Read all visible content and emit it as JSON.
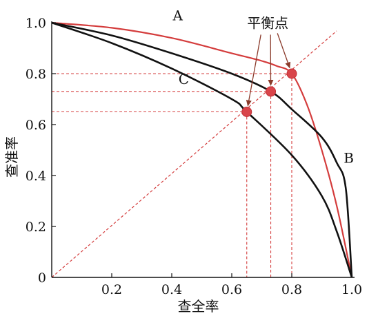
{
  "chart_data": {
    "type": "line",
    "xlabel": "查全率",
    "ylabel": "查准率",
    "xlim": [
      0,
      1
    ],
    "ylim": [
      0,
      1
    ],
    "x_ticks": [
      "0.2",
      "0.4",
      "0.6",
      "0.8",
      "1.0"
    ],
    "y_ticks": [
      "0",
      "0.2",
      "0.4",
      "0.6",
      "0.8",
      "1.0"
    ],
    "origin_label": "0",
    "series": [
      {
        "name": "A",
        "color": "#d43c3c",
        "x": [
          0,
          0.2,
          0.4,
          0.6,
          0.7,
          0.75,
          0.8,
          0.85,
          0.9,
          0.95,
          1.0
        ],
        "y": [
          1.0,
          0.98,
          0.94,
          0.88,
          0.85,
          0.83,
          0.8,
          0.68,
          0.5,
          0.28,
          0.0
        ]
      },
      {
        "name": "B",
        "color": "#111111",
        "x": [
          0,
          0.2,
          0.4,
          0.6,
          0.73,
          0.8,
          0.9,
          0.95,
          0.98,
          1.0
        ],
        "y": [
          1.0,
          0.95,
          0.88,
          0.8,
          0.73,
          0.66,
          0.55,
          0.45,
          0.35,
          0.0
        ]
      },
      {
        "name": "C",
        "color": "#111111",
        "x": [
          0,
          0.2,
          0.4,
          0.6,
          0.65,
          0.8,
          0.9,
          0.95,
          1.0
        ],
        "y": [
          1.0,
          0.92,
          0.82,
          0.7,
          0.65,
          0.48,
          0.32,
          0.18,
          0.0
        ]
      }
    ],
    "curve_labels": [
      {
        "text": "A",
        "x": 0.42,
        "y": 1.01
      },
      {
        "text": "B",
        "x": 0.99,
        "y": 0.45
      },
      {
        "text": "C",
        "x": 0.44,
        "y": 0.76
      }
    ],
    "reference_line": {
      "x": [
        0,
        1
      ],
      "y": [
        0,
        1
      ],
      "color": "#d43c3c",
      "style": "dashed"
    },
    "break_even_points": [
      {
        "x": 0.8,
        "y": 0.8
      },
      {
        "x": 0.73,
        "y": 0.73
      },
      {
        "x": 0.65,
        "y": 0.65
      }
    ],
    "annotation": {
      "text": "平衡点",
      "x": 0.72,
      "y": 0.98
    }
  }
}
